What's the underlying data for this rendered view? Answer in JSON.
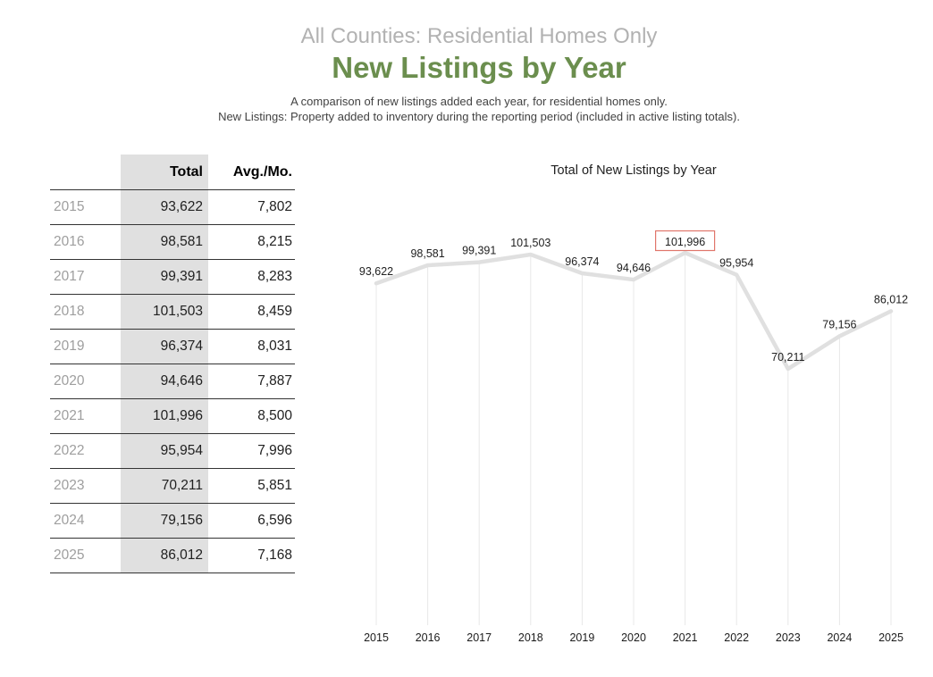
{
  "header": {
    "subtitle": "All Counties: Residential Homes Only",
    "title": "New Listings by Year",
    "description_line1": "A comparison of new listings added each year, for residential homes only.",
    "description_line2": "New Listings: Property added to inventory during the reporting period (included in active listing totals)."
  },
  "colors": {
    "title_green": "#6b8e4e",
    "subtitle_gray": "#b2b2b2",
    "table_band_gray": "#e0e0e0",
    "table_line": "#333333",
    "year_gray": "#9e9e9e",
    "text_dark": "#212121",
    "series_line": "#e0e0e0",
    "drop_line": "#e8e8e8",
    "highlight_border": "#e0766b",
    "highlight_fill": "#ffffff"
  },
  "table": {
    "columns": [
      "Total",
      "Avg./Mo."
    ],
    "rows": [
      {
        "year": "2015",
        "total": "93,622",
        "avg": "7,802"
      },
      {
        "year": "2016",
        "total": "98,581",
        "avg": "8,215"
      },
      {
        "year": "2017",
        "total": "99,391",
        "avg": "8,283"
      },
      {
        "year": "2018",
        "total": "101,503",
        "avg": "8,459"
      },
      {
        "year": "2019",
        "total": "96,374",
        "avg": "8,031"
      },
      {
        "year": "2020",
        "total": "94,646",
        "avg": "7,887"
      },
      {
        "year": "2021",
        "total": "101,996",
        "avg": "8,500"
      },
      {
        "year": "2022",
        "total": "95,954",
        "avg": "7,996"
      },
      {
        "year": "2023",
        "total": "70,211",
        "avg": "5,851"
      },
      {
        "year": "2024",
        "total": "79,156",
        "avg": "6,596"
      },
      {
        "year": "2025",
        "total": "86,012",
        "avg": "7,168"
      }
    ]
  },
  "chart_data": {
    "type": "line",
    "title": "Total of New Listings by Year",
    "categories": [
      "2015",
      "2016",
      "2017",
      "2018",
      "2019",
      "2020",
      "2021",
      "2022",
      "2023",
      "2024",
      "2025"
    ],
    "values": [
      93622,
      98581,
      99391,
      101503,
      96374,
      94646,
      101996,
      95954,
      70211,
      79156,
      86012
    ],
    "labels": [
      "93,622",
      "98,581",
      "99,391",
      "101,503",
      "96,374",
      "94,646",
      "101,996",
      "95,954",
      "70,211",
      "79,156",
      "86,012"
    ],
    "highlighted_index": 6,
    "xlabel": "",
    "ylabel": "",
    "ylim": [
      70211,
      101996
    ],
    "grid": "vertical-drop-lines-only",
    "legend_position": "none",
    "data_labels": "above-points"
  }
}
